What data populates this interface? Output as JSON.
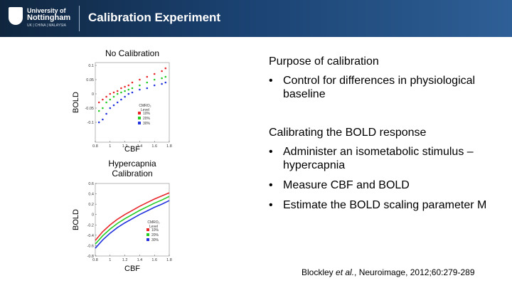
{
  "header": {
    "logo_line1": "University of",
    "logo_line2": "Nottingham",
    "logo_sub": "UK | CHINA | MALAYSIA",
    "title": "Calibration Experiment"
  },
  "sections": [
    {
      "heading": "Purpose of calibration",
      "bullets": [
        "Control for differences in physiological baseline"
      ]
    },
    {
      "heading": "Calibrating the BOLD response",
      "bullets": [
        "Administer an isometabolic stimulus – hypercapnia",
        "Measure CBF and BOLD",
        "Estimate the BOLD scaling parameter M"
      ]
    }
  ],
  "citation": [
    "Blockley ",
    "et al.",
    ", Neuroimage, 2012;60:279-289"
  ],
  "chart_data": [
    {
      "type": "scatter",
      "title": [
        "No Calibration"
      ],
      "xlabel": "CBF",
      "ylabel": "BOLD",
      "xlim": [
        0.8,
        1.8
      ],
      "ylim": [
        -0.17,
        0.11
      ],
      "xticks": [
        0.8,
        1,
        1.2,
        1.4,
        1.6,
        1.8
      ],
      "yticks": [
        0.1,
        0.05,
        0,
        -0.05,
        -0.1
      ],
      "legend_title": [
        "CMRO₂",
        "Level"
      ],
      "series": [
        {
          "name": "10%",
          "color": "#e8262a",
          "x": [
            0.85,
            0.9,
            0.95,
            1.0,
            1.05,
            1.1,
            1.15,
            1.2,
            1.25,
            1.3,
            1.4,
            1.5,
            1.6,
            1.7,
            1.75
          ],
          "y": [
            -0.03,
            -0.02,
            -0.01,
            0,
            0.005,
            0.01,
            0.02,
            0.025,
            0.03,
            0.04,
            0.05,
            0.06,
            0.07,
            0.08,
            0.09
          ]
        },
        {
          "name": "20%",
          "color": "#22cc22",
          "x": [
            0.85,
            0.9,
            0.95,
            1.0,
            1.05,
            1.1,
            1.15,
            1.2,
            1.25,
            1.3,
            1.4,
            1.5,
            1.6,
            1.7,
            1.75
          ],
          "y": [
            -0.06,
            -0.05,
            -0.03,
            -0.02,
            -0.01,
            0,
            0.005,
            0.01,
            0.015,
            0.02,
            0.03,
            0.04,
            0.05,
            0.055,
            0.06
          ]
        },
        {
          "name": "30%",
          "color": "#2233dd",
          "x": [
            0.85,
            0.9,
            0.95,
            1.0,
            1.05,
            1.1,
            1.15,
            1.2,
            1.25,
            1.3,
            1.4,
            1.5,
            1.6,
            1.7,
            1.75
          ],
          "y": [
            -0.1,
            -0.09,
            -0.07,
            -0.05,
            -0.04,
            -0.03,
            -0.02,
            -0.01,
            0,
            0.005,
            0.015,
            0.02,
            0.03,
            0.035,
            0.04
          ]
        }
      ]
    },
    {
      "type": "line",
      "title": [
        "Hypercapnia",
        "Calibration"
      ],
      "xlabel": "CBF",
      "ylabel": "BOLD",
      "xlim": [
        0.8,
        1.8
      ],
      "ylim": [
        -0.8,
        0.6
      ],
      "xticks": [
        0.8,
        1,
        1.2,
        1.4,
        1.6,
        1.8
      ],
      "yticks": [
        0.6,
        0.4,
        0.2,
        0,
        -0.2,
        -0.4,
        -0.6,
        -0.8
      ],
      "legend_title": [
        "CMRO₂",
        "Level"
      ],
      "series": [
        {
          "name": "10%",
          "color": "#e8262a",
          "x": [
            0.8,
            0.9,
            1.0,
            1.1,
            1.2,
            1.3,
            1.4,
            1.5,
            1.6,
            1.7,
            1.8
          ],
          "y": [
            -0.5,
            -0.33,
            -0.2,
            -0.09,
            0,
            0.08,
            0.16,
            0.23,
            0.3,
            0.36,
            0.42
          ]
        },
        {
          "name": "20%",
          "color": "#22cc22",
          "x": [
            0.8,
            0.9,
            1.0,
            1.1,
            1.2,
            1.3,
            1.4,
            1.5,
            1.6,
            1.7,
            1.8
          ],
          "y": [
            -0.57,
            -0.41,
            -0.28,
            -0.17,
            -0.08,
            0,
            0.08,
            0.15,
            0.22,
            0.28,
            0.35
          ]
        },
        {
          "name": "30%",
          "color": "#2233dd",
          "x": [
            0.8,
            0.9,
            1.0,
            1.1,
            1.2,
            1.3,
            1.4,
            1.5,
            1.6,
            1.7,
            1.8
          ],
          "y": [
            -0.65,
            -0.49,
            -0.36,
            -0.25,
            -0.16,
            -0.08,
            0,
            0.07,
            0.14,
            0.2,
            0.27
          ]
        }
      ]
    }
  ]
}
